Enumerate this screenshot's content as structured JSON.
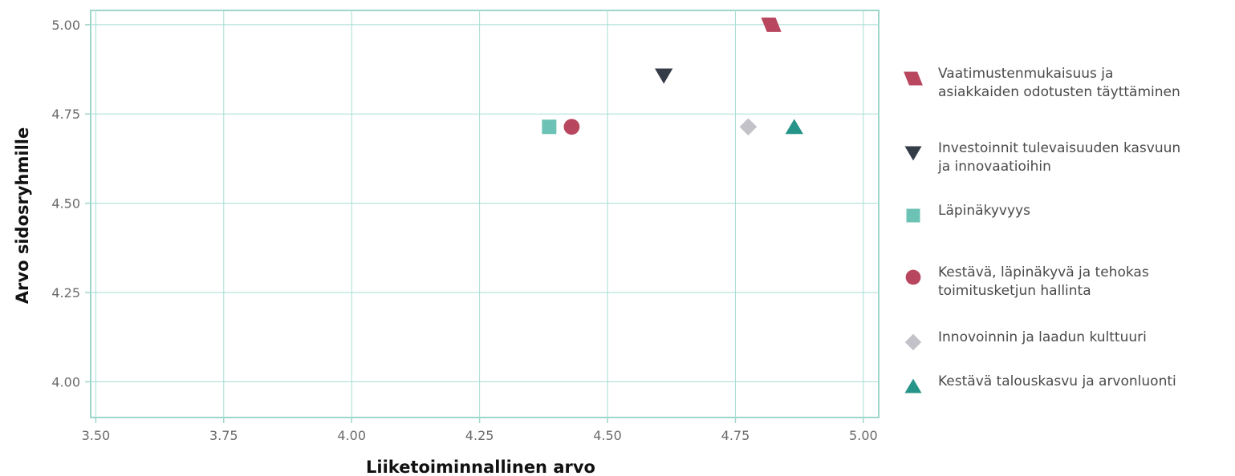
{
  "chart_data": {
    "type": "scatter",
    "title": "",
    "xlabel": "Liiketoiminnallinen arvo",
    "ylabel": "Arvo sidosryhmille",
    "xlim": [
      3.49,
      5.03
    ],
    "ylim": [
      3.9,
      5.04
    ],
    "xticks": [
      "3.50",
      "3.75",
      "4.00",
      "4.25",
      "4.50",
      "4.75",
      "5.00"
    ],
    "yticks": [
      "4.00",
      "4.25",
      "4.50",
      "4.75",
      "5.00"
    ],
    "grid": true,
    "legend_position": "right",
    "series": [
      {
        "name": "Vaatimustenmukaisuus ja asiakkaiden odotusten täyttäminen",
        "legend_lines": [
          "Vaatimustenmukaisuus ja",
          "asiakkaiden odotusten täyttäminen"
        ],
        "shape": "parallelogram",
        "color": "#b8465e",
        "x": 4.82,
        "y": 5.0
      },
      {
        "name": "Investoinnit tulevaisuuden kasvuun ja innovaatioihin",
        "legend_lines": [
          "Investoinnit tulevaisuuden kasvuun",
          "ja innovaatioihin"
        ],
        "shape": "triangle-down",
        "color": "#343c48",
        "x": 4.61,
        "y": 4.857
      },
      {
        "name": "Läpinäkyvyys",
        "legend_lines": [
          "Läpinäkyvyys"
        ],
        "shape": "square",
        "color": "#6cc2b4",
        "x": 4.386,
        "y": 4.714
      },
      {
        "name": "Kestävä, läpinäkyvä ja tehokas toimitusketjun hallinta",
        "legend_lines": [
          "Kestävä, läpinäkyvä ja tehokas",
          "toimitusketjun hallinta"
        ],
        "shape": "circle",
        "color": "#b8465e",
        "x": 4.43,
        "y": 4.714
      },
      {
        "name": "Innovoinnin ja laadun kulttuuri",
        "legend_lines": [
          "Innovoinnin ja laadun kulttuuri"
        ],
        "shape": "diamond",
        "color": "#c2c2c8",
        "x": 4.775,
        "y": 4.714
      },
      {
        "name": "Kestävä talouskasvu ja arvonluonti",
        "legend_lines": [
          "Kestävä talouskasvu ja arvonluonti"
        ],
        "shape": "triangle-up",
        "color": "#27948a",
        "x": 4.865,
        "y": 4.714
      }
    ],
    "colors": {
      "grid": "#a6ddd3",
      "border": "#9fd6cc"
    }
  }
}
